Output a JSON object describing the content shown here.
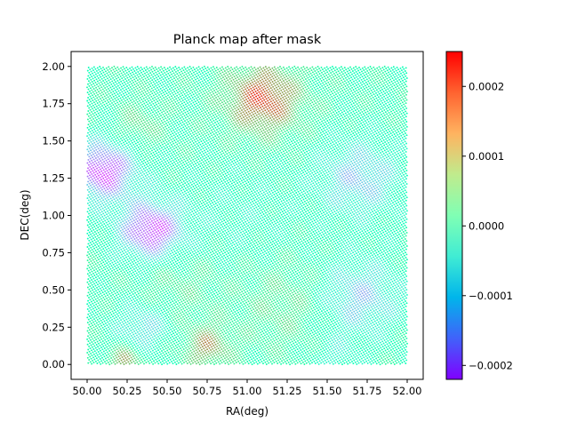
{
  "chart_data": {
    "type": "scatter",
    "title": "Planck map after mask",
    "xlabel": "RA(deg)",
    "ylabel": "DEC(deg)",
    "xlim": [
      49.9,
      52.1
    ],
    "ylim": [
      -0.1,
      2.1
    ],
    "xticks": [
      50.0,
      50.25,
      50.5,
      50.75,
      51.0,
      51.25,
      51.5,
      51.75,
      52.0
    ],
    "xtick_labels": [
      "50.00",
      "50.25",
      "50.50",
      "50.75",
      "51.00",
      "51.25",
      "51.50",
      "51.75",
      "52.00"
    ],
    "yticks": [
      0.0,
      0.25,
      0.5,
      0.75,
      1.0,
      1.25,
      1.5,
      1.75,
      2.0
    ],
    "ytick_labels": [
      "0.00",
      "0.25",
      "0.50",
      "0.75",
      "1.00",
      "1.25",
      "1.50",
      "1.75",
      "2.00"
    ],
    "x_range": [
      50.0,
      52.0
    ],
    "y_range": [
      0.0,
      2.0
    ],
    "grid": false,
    "colormap": "rainbow",
    "colorbar": {
      "vmin": -0.00022,
      "vmax": 0.00025,
      "ticks": [
        -0.0002,
        -0.0001,
        0.0,
        0.0001,
        0.0002
      ],
      "tick_labels": [
        "−0.0002",
        "−0.0001",
        "0.0000",
        "0.0001",
        "0.0002"
      ]
    },
    "field": {
      "base": 3e-05,
      "features": [
        {
          "ra": 51.1,
          "dec": 1.78,
          "value": 0.00018,
          "sigma": 0.16
        },
        {
          "ra": 50.32,
          "dec": 1.6,
          "value": 6e-05,
          "sigma": 0.1
        },
        {
          "ra": 50.75,
          "dec": 0.12,
          "value": 0.00012,
          "sigma": 0.1
        },
        {
          "ra": 50.24,
          "dec": 0.03,
          "value": 0.00012,
          "sigma": 0.07
        },
        {
          "ra": 51.25,
          "dec": 0.4,
          "value": 5e-05,
          "sigma": 0.2
        },
        {
          "ra": 50.55,
          "dec": 0.55,
          "value": 4e-05,
          "sigma": 0.18
        },
        {
          "ra": 50.1,
          "dec": 1.3,
          "value": -0.00022,
          "sigma": 0.14
        },
        {
          "ra": 50.4,
          "dec": 0.9,
          "value": -0.00022,
          "sigma": 0.14
        },
        {
          "ra": 51.7,
          "dec": 1.25,
          "value": -0.00012,
          "sigma": 0.18
        },
        {
          "ra": 51.7,
          "dec": 0.45,
          "value": -0.00012,
          "sigma": 0.18
        },
        {
          "ra": 50.35,
          "dec": 0.25,
          "value": -0.0001,
          "sigma": 0.12
        },
        {
          "ra": 51.55,
          "dec": 0.05,
          "value": -5e-05,
          "sigma": 0.1
        },
        {
          "ra": 50.95,
          "dec": 1.0,
          "value": -3e-05,
          "sigma": 0.25
        }
      ]
    }
  }
}
